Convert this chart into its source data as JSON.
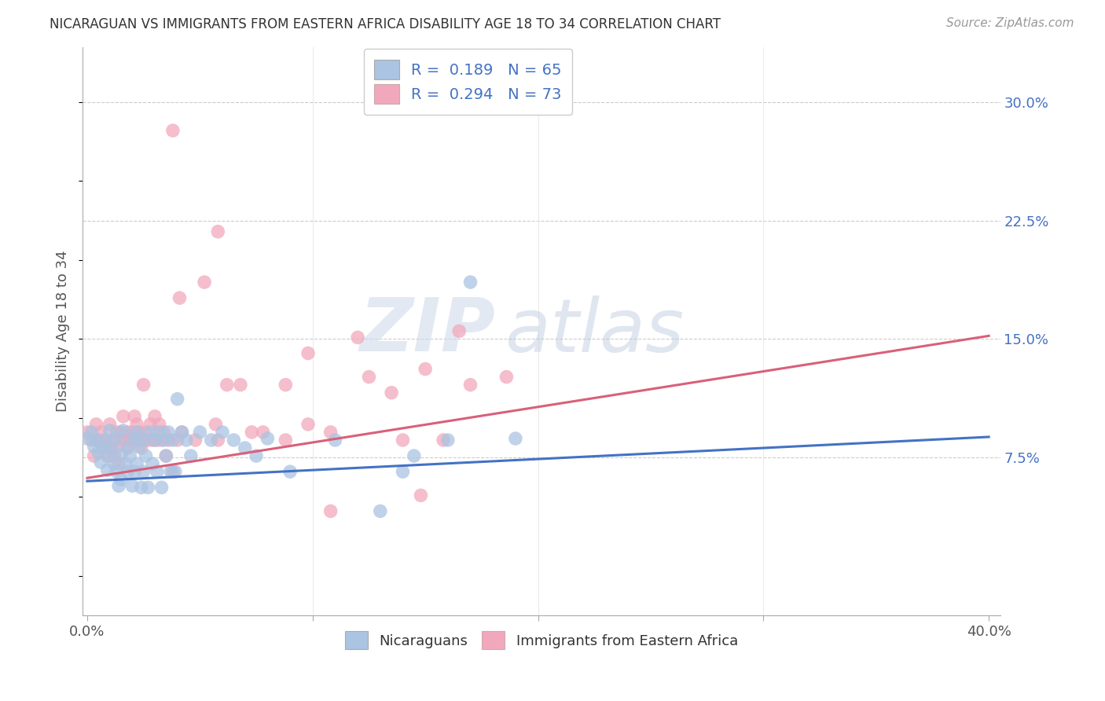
{
  "title": "NICARAGUAN VS IMMIGRANTS FROM EASTERN AFRICA DISABILITY AGE 18 TO 34 CORRELATION CHART",
  "source": "Source: ZipAtlas.com",
  "ylabel": "Disability Age 18 to 34",
  "y_ticks": [
    0.075,
    0.15,
    0.225,
    0.3
  ],
  "y_tick_labels": [
    "7.5%",
    "15.0%",
    "22.5%",
    "30.0%"
  ],
  "xlim": [
    -0.002,
    0.405
  ],
  "ylim": [
    -0.025,
    0.335
  ],
  "blue_R": 0.189,
  "blue_N": 65,
  "pink_R": 0.294,
  "pink_N": 73,
  "blue_color": "#aac4e2",
  "pink_color": "#f2a8bc",
  "blue_line_color": "#4472c4",
  "pink_line_color": "#d9607a",
  "legend_label_blue": "Nicaraguans",
  "legend_label_pink": "Immigrants from Eastern Africa",
  "watermark_zip": "ZIP",
  "watermark_atlas": "atlas",
  "blue_line_y_start": 0.06,
  "blue_line_y_end": 0.088,
  "pink_line_y_start": 0.062,
  "pink_line_y_end": 0.152,
  "blue_points": [
    [
      0.0,
      0.087
    ],
    [
      0.002,
      0.091
    ],
    [
      0.003,
      0.082
    ],
    [
      0.004,
      0.086
    ],
    [
      0.005,
      0.078
    ],
    [
      0.006,
      0.072
    ],
    [
      0.007,
      0.081
    ],
    [
      0.008,
      0.086
    ],
    [
      0.009,
      0.067
    ],
    [
      0.01,
      0.092
    ],
    [
      0.01,
      0.076
    ],
    [
      0.011,
      0.081
    ],
    [
      0.012,
      0.071
    ],
    [
      0.013,
      0.087
    ],
    [
      0.013,
      0.066
    ],
    [
      0.014,
      0.057
    ],
    [
      0.015,
      0.077
    ],
    [
      0.015,
      0.061
    ],
    [
      0.016,
      0.092
    ],
    [
      0.017,
      0.071
    ],
    [
      0.018,
      0.082
    ],
    [
      0.018,
      0.066
    ],
    [
      0.019,
      0.076
    ],
    [
      0.02,
      0.057
    ],
    [
      0.021,
      0.087
    ],
    [
      0.021,
      0.066
    ],
    [
      0.022,
      0.091
    ],
    [
      0.022,
      0.071
    ],
    [
      0.023,
      0.082
    ],
    [
      0.024,
      0.056
    ],
    [
      0.025,
      0.086
    ],
    [
      0.025,
      0.066
    ],
    [
      0.026,
      0.076
    ],
    [
      0.027,
      0.056
    ],
    [
      0.028,
      0.091
    ],
    [
      0.029,
      0.071
    ],
    [
      0.03,
      0.086
    ],
    [
      0.031,
      0.066
    ],
    [
      0.032,
      0.091
    ],
    [
      0.033,
      0.056
    ],
    [
      0.034,
      0.086
    ],
    [
      0.035,
      0.076
    ],
    [
      0.036,
      0.091
    ],
    [
      0.037,
      0.066
    ],
    [
      0.038,
      0.086
    ],
    [
      0.039,
      0.066
    ],
    [
      0.04,
      0.112
    ],
    [
      0.042,
      0.091
    ],
    [
      0.044,
      0.086
    ],
    [
      0.046,
      0.076
    ],
    [
      0.05,
      0.091
    ],
    [
      0.055,
      0.086
    ],
    [
      0.06,
      0.091
    ],
    [
      0.065,
      0.086
    ],
    [
      0.07,
      0.081
    ],
    [
      0.075,
      0.076
    ],
    [
      0.08,
      0.087
    ],
    [
      0.09,
      0.066
    ],
    [
      0.11,
      0.086
    ],
    [
      0.13,
      0.041
    ],
    [
      0.14,
      0.066
    ],
    [
      0.145,
      0.076
    ],
    [
      0.16,
      0.086
    ],
    [
      0.17,
      0.186
    ],
    [
      0.19,
      0.087
    ]
  ],
  "pink_points": [
    [
      0.0,
      0.091
    ],
    [
      0.002,
      0.086
    ],
    [
      0.003,
      0.076
    ],
    [
      0.004,
      0.096
    ],
    [
      0.005,
      0.086
    ],
    [
      0.006,
      0.091
    ],
    [
      0.007,
      0.081
    ],
    [
      0.008,
      0.086
    ],
    [
      0.009,
      0.076
    ],
    [
      0.01,
      0.096
    ],
    [
      0.01,
      0.081
    ],
    [
      0.011,
      0.086
    ],
    [
      0.012,
      0.076
    ],
    [
      0.013,
      0.091
    ],
    [
      0.013,
      0.081
    ],
    [
      0.014,
      0.071
    ],
    [
      0.015,
      0.086
    ],
    [
      0.015,
      0.091
    ],
    [
      0.016,
      0.101
    ],
    [
      0.017,
      0.086
    ],
    [
      0.018,
      0.091
    ],
    [
      0.018,
      0.081
    ],
    [
      0.019,
      0.086
    ],
    [
      0.02,
      0.091
    ],
    [
      0.021,
      0.101
    ],
    [
      0.021,
      0.086
    ],
    [
      0.022,
      0.096
    ],
    [
      0.022,
      0.086
    ],
    [
      0.023,
      0.091
    ],
    [
      0.024,
      0.081
    ],
    [
      0.025,
      0.086
    ],
    [
      0.025,
      0.121
    ],
    [
      0.026,
      0.091
    ],
    [
      0.027,
      0.086
    ],
    [
      0.028,
      0.096
    ],
    [
      0.029,
      0.086
    ],
    [
      0.03,
      0.101
    ],
    [
      0.031,
      0.086
    ],
    [
      0.032,
      0.096
    ],
    [
      0.033,
      0.086
    ],
    [
      0.034,
      0.091
    ],
    [
      0.035,
      0.076
    ],
    [
      0.036,
      0.086
    ],
    [
      0.038,
      0.066
    ],
    [
      0.04,
      0.086
    ],
    [
      0.041,
      0.176
    ],
    [
      0.042,
      0.091
    ],
    [
      0.048,
      0.086
    ],
    [
      0.052,
      0.186
    ],
    [
      0.057,
      0.096
    ],
    [
      0.058,
      0.086
    ],
    [
      0.062,
      0.121
    ],
    [
      0.068,
      0.121
    ],
    [
      0.073,
      0.091
    ],
    [
      0.078,
      0.091
    ],
    [
      0.088,
      0.086
    ],
    [
      0.098,
      0.096
    ],
    [
      0.108,
      0.091
    ],
    [
      0.12,
      0.151
    ],
    [
      0.135,
      0.116
    ],
    [
      0.14,
      0.086
    ],
    [
      0.15,
      0.131
    ],
    [
      0.158,
      0.086
    ],
    [
      0.165,
      0.155
    ],
    [
      0.038,
      0.282
    ],
    [
      0.058,
      0.218
    ],
    [
      0.17,
      0.121
    ],
    [
      0.186,
      0.126
    ],
    [
      0.148,
      0.051
    ],
    [
      0.108,
      0.041
    ],
    [
      0.125,
      0.126
    ],
    [
      0.088,
      0.121
    ],
    [
      0.098,
      0.141
    ]
  ]
}
